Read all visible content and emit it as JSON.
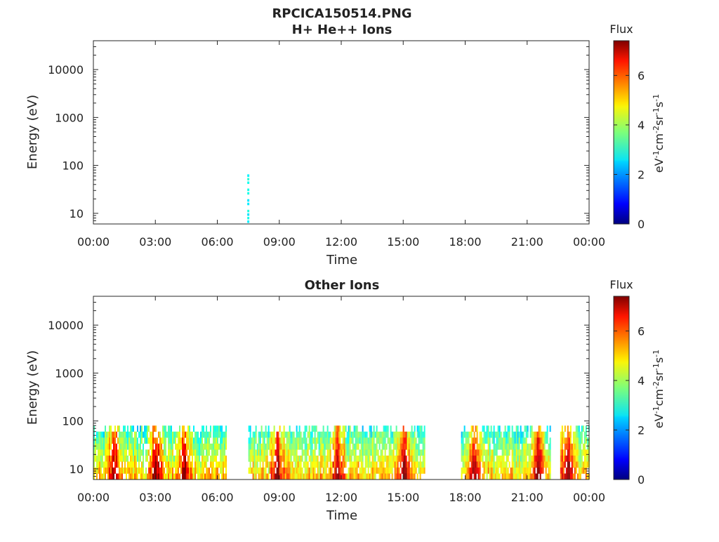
{
  "figure": {
    "title": "RPCICA150514.PNG"
  },
  "chart_data": [
    {
      "type": "heatmap",
      "title": "H+ He++ Ions",
      "xlabel": "Time",
      "ylabel": "Energy (eV)",
      "x_ticks": [
        "00:00",
        "03:00",
        "06:00",
        "09:00",
        "12:00",
        "15:00",
        "18:00",
        "21:00",
        "00:00"
      ],
      "y_ticks": [
        "10",
        "100",
        "1000",
        "10000"
      ],
      "y_scale": "log",
      "colorbar": {
        "title": "Flux",
        "ticks": [
          "0",
          "2",
          "4",
          "6"
        ],
        "unit": "eV-1cm-2sr-1s-1",
        "range": [
          0,
          7.4
        ],
        "colormap": "jet"
      },
      "data_spans": [
        {
          "start_hour": 7.45,
          "end_hour": 7.55,
          "energy_min": 6,
          "energy_max": 65,
          "flux": 2.5
        }
      ]
    },
    {
      "type": "heatmap",
      "title": "Other Ions",
      "xlabel": "Time",
      "ylabel": "Energy (eV)",
      "x_ticks": [
        "00:00",
        "03:00",
        "06:00",
        "09:00",
        "12:00",
        "15:00",
        "18:00",
        "21:00",
        "00:00"
      ],
      "y_ticks": [
        "10",
        "100",
        "1000",
        "10000"
      ],
      "y_scale": "log",
      "colorbar": {
        "title": "Flux",
        "ticks": [
          "0",
          "2",
          "4",
          "6"
        ],
        "unit": "eV-1cm-2sr-1s-1",
        "range": [
          0,
          7.4
        ],
        "colormap": "jet"
      },
      "energy_range": [
        6,
        80
      ],
      "data_spans": [
        {
          "start_hour": 0.0,
          "end_hour": 6.4
        },
        {
          "start_hour": 7.5,
          "end_hour": 16.0
        },
        {
          "start_hour": 17.8,
          "end_hour": 22.1
        },
        {
          "start_hour": 22.6,
          "end_hour": 24.0
        }
      ],
      "hotspots_hours": [
        1.0,
        3.0,
        4.4,
        8.9,
        11.8,
        15.0,
        18.4,
        21.5,
        22.9
      ]
    }
  ]
}
